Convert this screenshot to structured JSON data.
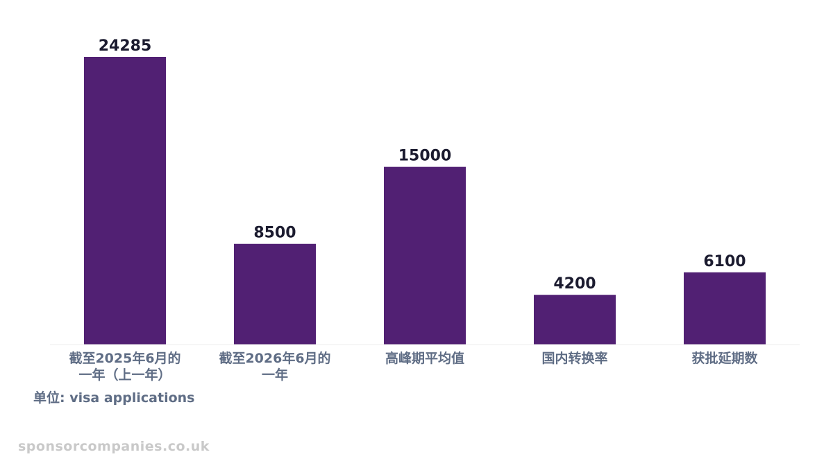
{
  "chart_data": {
    "type": "bar",
    "categories": [
      "截至2025年6月的一年（上一年）",
      "截至2026年6月的一年",
      "高峰期平均值",
      "国内转换率",
      "获批延期数"
    ],
    "values": [
      24285,
      8500,
      15000,
      4200,
      6100
    ],
    "ylim": [
      0,
      24285
    ],
    "grid": false,
    "bar_color": "#512073",
    "unit_label": "单位: visa applications"
  },
  "watermark": "sponsorcompanies.co.uk"
}
